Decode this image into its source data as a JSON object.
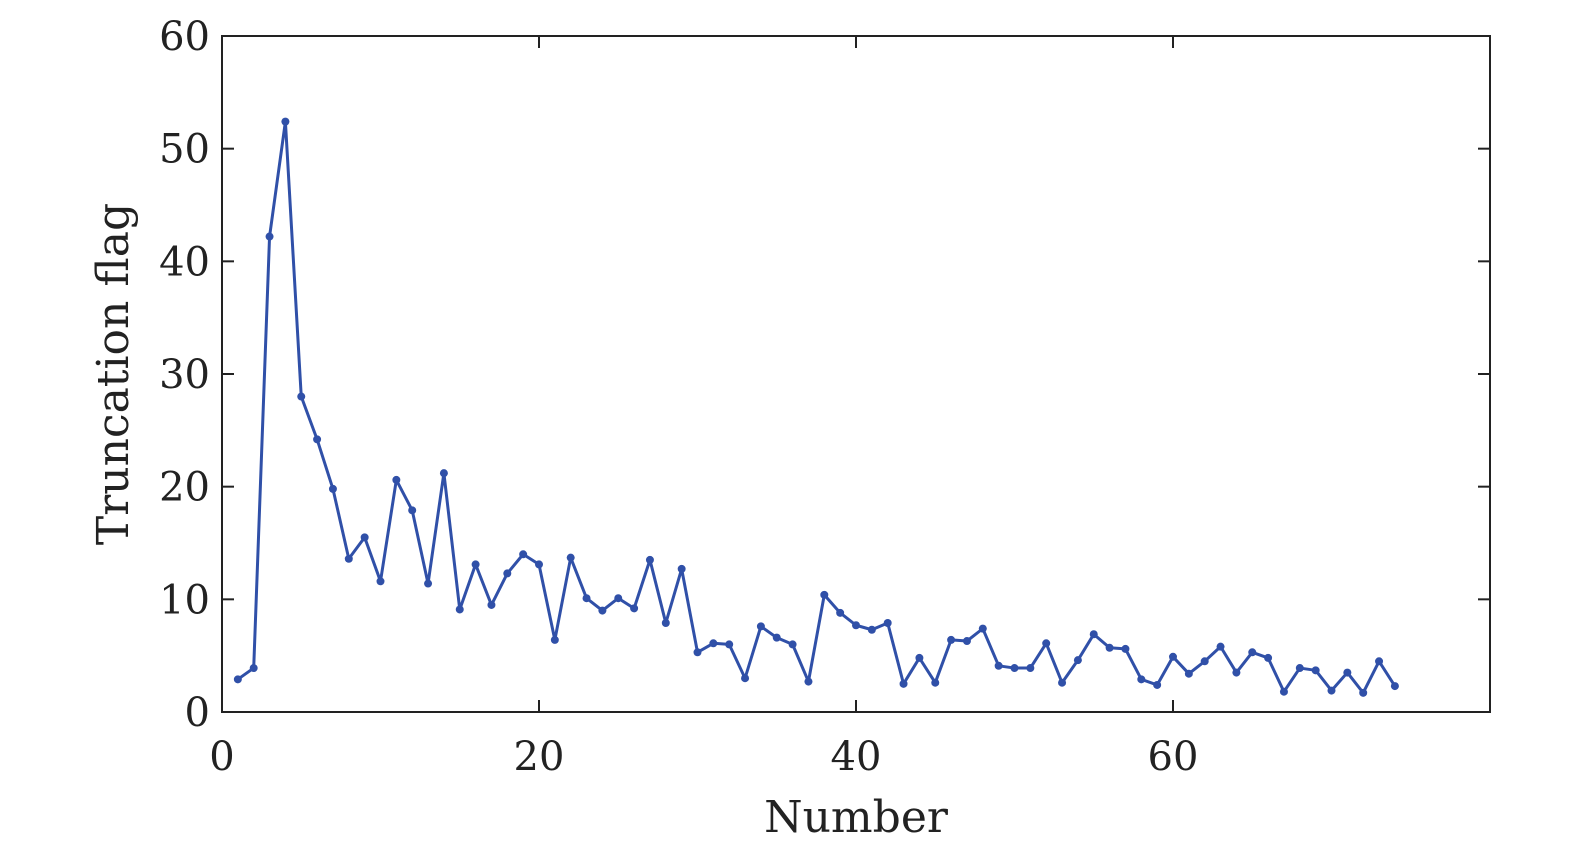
{
  "chart_data": {
    "type": "line",
    "title": "",
    "xlabel": "Number",
    "ylabel": "Truncation flag",
    "xlim": [
      0,
      80
    ],
    "ylim": [
      0,
      60
    ],
    "xticks": [
      0,
      20,
      40,
      60
    ],
    "yticks": [
      0,
      10,
      20,
      30,
      40,
      50,
      60
    ],
    "grid": false,
    "legend": "none",
    "color": "#3050a8",
    "series": [
      {
        "x": [
          1,
          2,
          3,
          4,
          5,
          6,
          7,
          8,
          9,
          10,
          11,
          12,
          13,
          14,
          15,
          16,
          17,
          18,
          19,
          20,
          21,
          22,
          23,
          24,
          25,
          26,
          27,
          28,
          29,
          30,
          31,
          32,
          33,
          34,
          35,
          36,
          37,
          38,
          39,
          40,
          41,
          42,
          43,
          44,
          45,
          46,
          47,
          48,
          49,
          50,
          51,
          52,
          53,
          54,
          55,
          56,
          57,
          58,
          59,
          60,
          61,
          62,
          63,
          64,
          65,
          66,
          67,
          68,
          69,
          70,
          71,
          72,
          73,
          74
        ],
        "y": [
          2.9,
          3.9,
          42.2,
          52.4,
          28.0,
          24.2,
          19.8,
          13.6,
          15.5,
          11.6,
          20.6,
          17.9,
          11.4,
          21.2,
          9.1,
          13.1,
          9.5,
          12.3,
          14.0,
          13.1,
          6.4,
          13.7,
          10.1,
          9.0,
          10.1,
          9.2,
          13.5,
          7.9,
          12.7,
          5.3,
          6.1,
          6.0,
          3.0,
          7.6,
          6.6,
          6.0,
          2.7,
          10.4,
          8.8,
          7.7,
          7.3,
          7.9,
          2.5,
          4.8,
          2.6,
          6.4,
          6.3,
          7.4,
          4.1,
          3.9,
          3.9,
          6.1,
          2.6,
          4.6,
          6.9,
          5.7,
          5.6,
          2.9,
          2.4,
          4.9,
          3.4,
          4.5,
          5.8,
          3.5,
          5.3,
          4.8,
          1.8,
          3.9,
          3.7,
          1.9,
          3.5,
          1.7,
          4.5,
          2.3
        ]
      }
    ]
  }
}
